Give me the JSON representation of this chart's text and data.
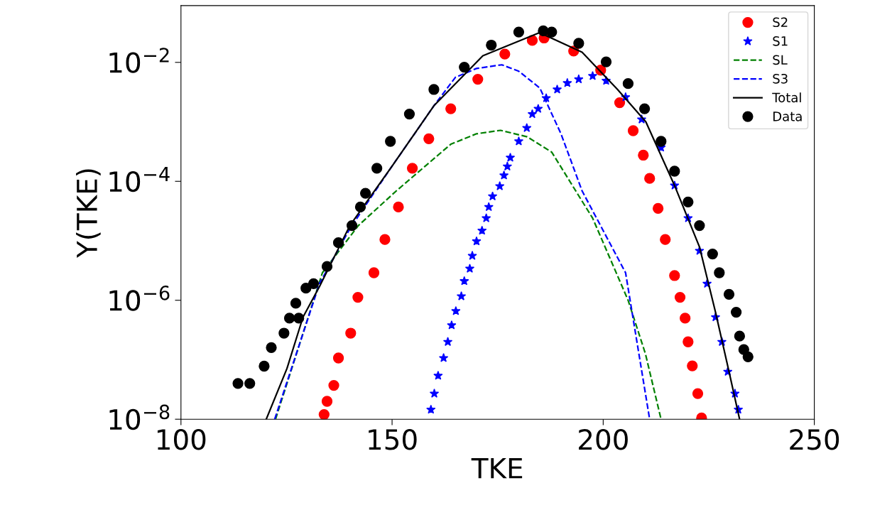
{
  "chart_data": {
    "type": "scatter",
    "xlabel": "TKE",
    "ylabel": "Y(TKE)",
    "log": "y",
    "grid": false,
    "legend": "top right",
    "xlim": [
      100,
      250
    ],
    "xticks": [
      100,
      150,
      200,
      250
    ],
    "ylim": [
      1e-08,
      0.09
    ],
    "yticks": [
      {
        "value": 1e-08,
        "label": "10$^{−8}$"
      },
      {
        "value": 1e-06,
        "label": "10$^{−6}$"
      },
      {
        "value": 0.0001,
        "label": "10$^{−4}$"
      },
      {
        "value": 0.01,
        "label": "10$^{−2}$"
      }
    ],
    "series": [
      {
        "name": "S2",
        "marker": "circle",
        "color": "#ff0000",
        "x": [
          133.9,
          134.6,
          136.2,
          137.3,
          140.2,
          141.9,
          145.7,
          148.3,
          151.5,
          154.8,
          158.7,
          163.9,
          170.3,
          176.7,
          183.2,
          186,
          193,
          199.4,
          203.9,
          207.1,
          209.5,
          211,
          213,
          214.7,
          216.9,
          218.2,
          219.4,
          220.1,
          221.1,
          222.4,
          223.3
        ],
        "values": [
          1.2e-08,
          2e-08,
          3.7e-08,
          1.07e-07,
          2.8e-07,
          1.12e-06,
          2.9e-06,
          1.05e-05,
          3.7e-05,
          0.000166,
          0.00052,
          0.00166,
          0.0052,
          0.0138,
          0.0234,
          0.0257,
          0.0155,
          0.0074,
          0.0021,
          0.00071,
          0.000275,
          0.000112,
          3.5e-05,
          1.05e-05,
          2.6e-06,
          1.12e-06,
          5e-07,
          2e-07,
          7.9e-08,
          2.7e-08,
          1.05e-08
        ]
      },
      {
        "name": "S1",
        "marker": "star",
        "color": "#0000ff",
        "x": [
          159.2,
          160,
          160.9,
          162.2,
          163.2,
          164.1,
          165.1,
          166.4,
          167.1,
          168.4,
          169,
          170,
          171.3,
          172.3,
          172.9,
          173.8,
          175.5,
          176.5,
          177.3,
          178,
          180,
          181.9,
          183.2,
          184.6,
          186.5,
          189.1,
          191.5,
          194.2,
          197.5,
          200.7,
          205.3,
          209.1,
          213.7,
          216.9,
          220.1,
          222.8,
          224.6,
          226.6,
          228.1,
          229.5,
          231.2,
          232
        ],
        "values": [
          1.45e-08,
          2.7e-08,
          5.4e-08,
          1.07e-07,
          2e-07,
          3.8e-07,
          6.6e-07,
          1.17e-06,
          2.1e-06,
          3.4e-06,
          5.6e-06,
          9.8e-06,
          1.48e-05,
          2.4e-05,
          3.7e-05,
          5.6e-05,
          8.3e-05,
          0.000126,
          0.000178,
          0.00025,
          0.00047,
          0.00079,
          0.00135,
          0.00166,
          0.0025,
          0.0035,
          0.0045,
          0.0052,
          0.0059,
          0.0049,
          0.0026,
          0.0011,
          0.00037,
          8.5e-05,
          2.4e-05,
          6.8e-06,
          1.9e-06,
          5.2e-07,
          2e-07,
          6.3e-08,
          2.7e-08,
          1.45e-08
        ]
      },
      {
        "name": "SL",
        "type": "line",
        "line_style": "dashed",
        "color": "#008000",
        "x": [
          122.4,
          133.5,
          142,
          151,
          163.9,
          170,
          175.7,
          182,
          187.8,
          197.5,
          205.9,
          210,
          213.7
        ],
        "values": [
          1e-08,
          2.9e-06,
          1.8e-05,
          6.9e-05,
          0.00042,
          0.00063,
          0.00072,
          0.00056,
          0.00031,
          2.4e-05,
          1e-06,
          1.26e-07,
          1e-08
        ]
      },
      {
        "name": "S3",
        "type": "line",
        "line_style": "dashed",
        "color": "#0000ff",
        "x": [
          122.2,
          132.8,
          140,
          150,
          160,
          165,
          170,
          176,
          180,
          185,
          190,
          195,
          205.3,
          211
        ],
        "values": [
          1e-08,
          1.9e-06,
          1.6e-05,
          0.00018,
          0.0019,
          0.0056,
          0.0079,
          0.0091,
          0.0071,
          0.0037,
          0.00063,
          6.9e-05,
          2.9e-06,
          1e-08
        ]
      },
      {
        "name": "Total",
        "type": "line",
        "line_style": "solid",
        "color": "#000000",
        "x": [
          120.2,
          125.1,
          128.9,
          132.8,
          140,
          150,
          160,
          171.5,
          184.9,
          195,
          203.4,
          210.1,
          216.9,
          222.8,
          226.6,
          229.8,
          232.3
        ],
        "values": [
          1e-08,
          7.1e-08,
          5.2e-07,
          1.7e-06,
          1.8e-05,
          0.00018,
          0.0019,
          0.0129,
          0.0316,
          0.0148,
          0.0035,
          0.001,
          8.5e-05,
          7.9e-06,
          6.3e-07,
          6.3e-08,
          1e-08
        ]
      },
      {
        "name": "Data",
        "marker": "circle",
        "color": "#000000",
        "x": [
          113.5,
          116.3,
          119.7,
          121.4,
          124.4,
          125.7,
          127.2,
          127.9,
          129.6,
          131.4,
          134.6,
          137.3,
          140.5,
          142.5,
          143.7,
          146.4,
          149.6,
          154.1,
          159.9,
          167.1,
          173.5,
          180,
          185.8,
          187.8,
          194.2,
          200.7,
          205.9,
          209.8,
          213.7,
          216.9,
          220.1,
          222.8,
          225.9,
          227.5,
          229.8,
          231.5,
          232.3,
          233.3,
          234.3
        ],
        "values": [
          4e-08,
          4e-08,
          7.8e-08,
          1.6e-07,
          2.8e-07,
          5e-07,
          8.9e-07,
          5e-07,
          1.6e-06,
          1.9e-06,
          3.7e-06,
          9.3e-06,
          1.8e-05,
          3.7e-05,
          6.3e-05,
          0.000166,
          0.00047,
          0.00135,
          0.0035,
          0.0083,
          0.0195,
          0.0324,
          0.0339,
          0.0324,
          0.0209,
          0.0102,
          0.0044,
          0.00166,
          0.00047,
          0.000148,
          4.5e-05,
          1.8e-05,
          6e-06,
          2.9e-06,
          1.26e-06,
          6.3e-07,
          2.5e-07,
          1.48e-07,
          1.12e-07
        ]
      }
    ]
  }
}
